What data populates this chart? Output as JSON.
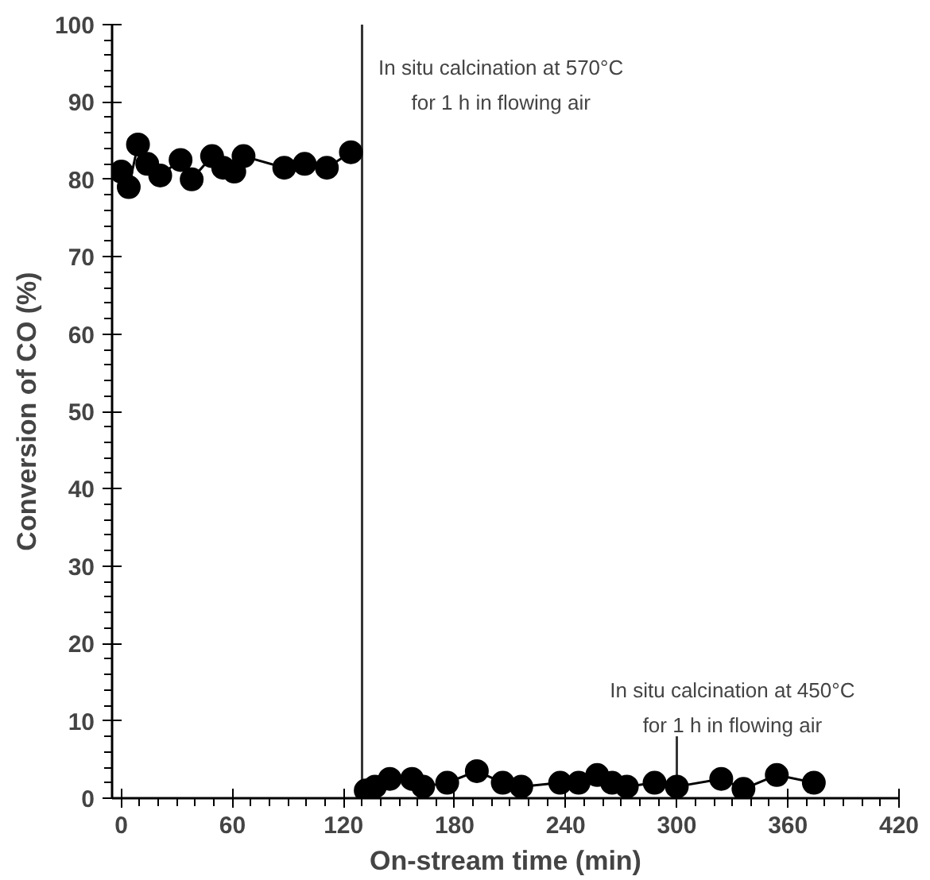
{
  "chart_data": {
    "type": "line",
    "xlabel": "On-stream time (min)",
    "ylabel": "Conversion of CO (%)",
    "xlim": [
      -5,
      420
    ],
    "ylim": [
      0,
      100
    ],
    "xticks": [
      0,
      60,
      120,
      180,
      240,
      300,
      360,
      420
    ],
    "yticks": [
      0,
      10,
      20,
      30,
      40,
      50,
      60,
      70,
      80,
      90,
      100
    ],
    "marker": "circle",
    "line_style": "solid",
    "grid": false,
    "series": [
      {
        "color": "#000000",
        "x": [
          0,
          4,
          9,
          14,
          21,
          32,
          38,
          49,
          55,
          61,
          66,
          88,
          99,
          111,
          124
        ],
        "values": [
          81,
          79,
          84.5,
          82,
          80.5,
          82.5,
          80,
          83,
          81.5,
          81,
          83,
          81.5,
          82,
          81.5,
          83.5
        ]
      },
      {
        "color": "#000000",
        "x": [
          132,
          137,
          145,
          157,
          163,
          176,
          192,
          206,
          216,
          237,
          247,
          257,
          265,
          273,
          288,
          300,
          324,
          336,
          354,
          374
        ],
        "values": [
          1,
          1.5,
          2.5,
          2.5,
          1.5,
          2,
          3.5,
          2,
          1.5,
          2,
          2,
          3,
          2,
          1.5,
          2,
          1.5,
          2.5,
          1.2,
          3,
          2
        ]
      }
    ],
    "ref_lines": [
      {
        "axis": "x",
        "value": 130,
        "label": "In situ calcination at 570°C\nfor 1 h in flowing air"
      }
    ],
    "annotations": [
      {
        "text": "In situ calcination at 450°C\nfor 1 h in flowing air",
        "x": 300,
        "y": 1.5
      }
    ]
  }
}
